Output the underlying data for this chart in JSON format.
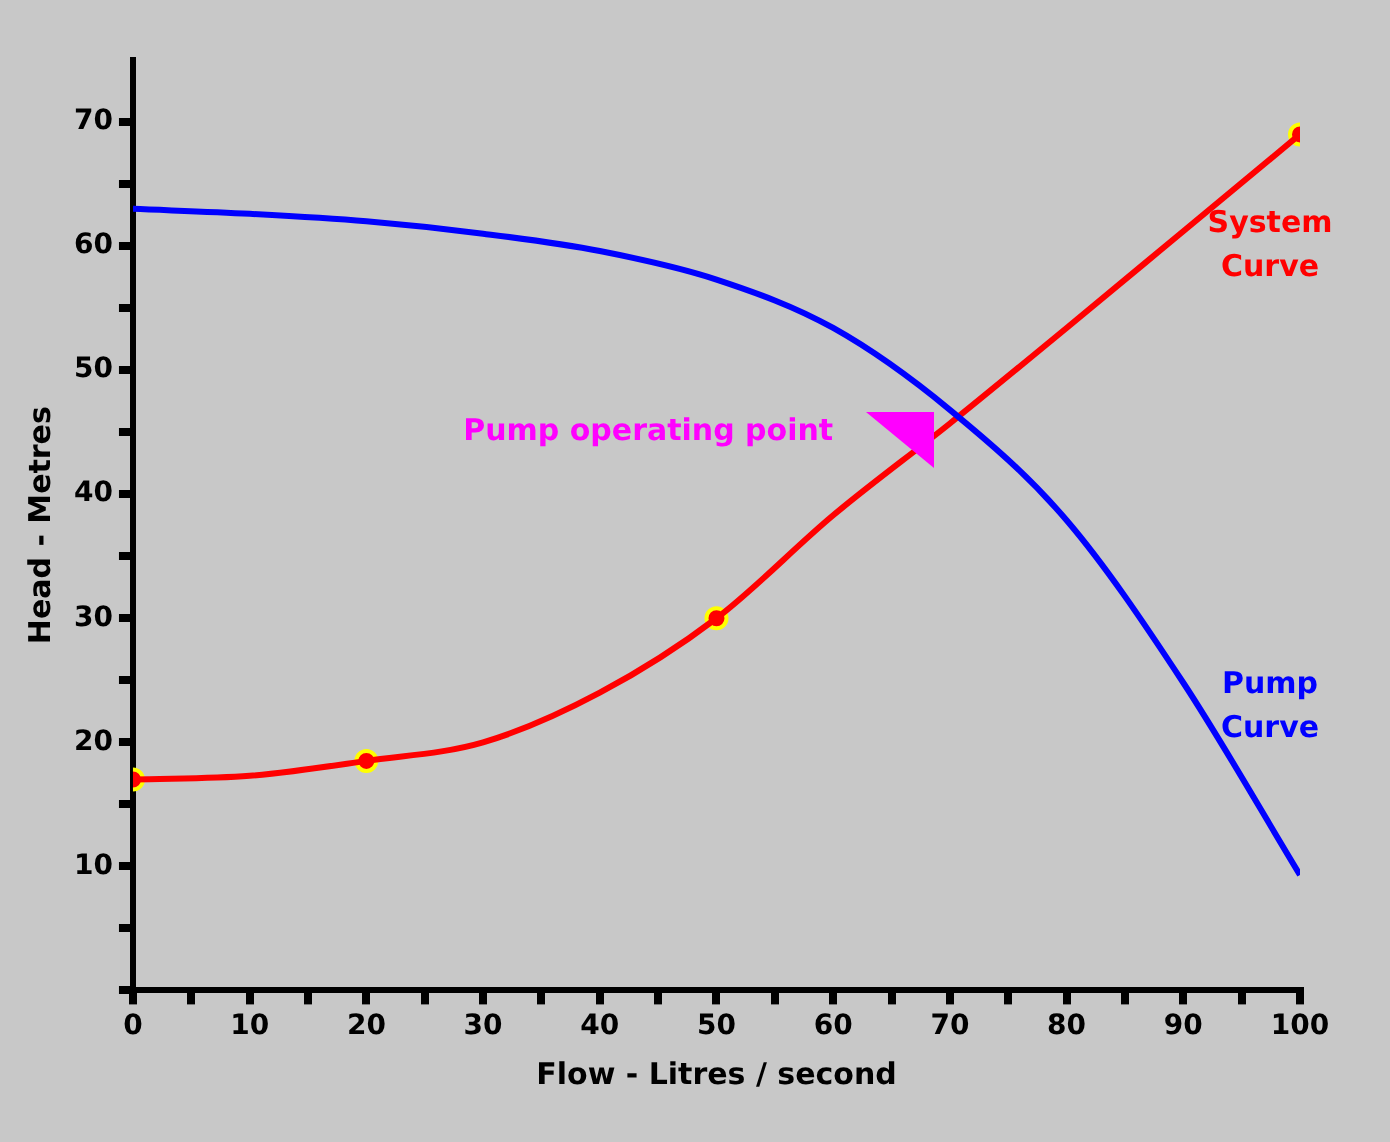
{
  "chart_data": {
    "type": "line",
    "xlabel": "Flow - Litres / second",
    "ylabel": "Head - Metres",
    "xlim": [
      0,
      100
    ],
    "ylim": [
      0,
      75
    ],
    "xticks": [
      0,
      {
        "value": 5,
        "label": null
      },
      10,
      {
        "value": 15,
        "label": null
      },
      20,
      {
        "value": 25,
        "label": null
      },
      30,
      {
        "value": 35,
        "label": null
      },
      40,
      {
        "value": 45,
        "label": null
      },
      50,
      {
        "value": 55,
        "label": null
      },
      60,
      {
        "value": 65,
        "label": null
      },
      70,
      {
        "value": 75,
        "label": null
      },
      80,
      {
        "value": 85,
        "label": null
      },
      90,
      {
        "value": 95,
        "label": null
      },
      100
    ],
    "yticks": [
      {
        "value": 0,
        "label": null
      },
      {
        "value": 5,
        "label": null
      },
      10,
      {
        "value": 15,
        "label": null
      },
      20,
      {
        "value": 25,
        "label": null
      },
      30,
      {
        "value": 35,
        "label": null
      },
      40,
      {
        "value": 45,
        "label": null
      },
      50,
      {
        "value": 55,
        "label": null
      },
      60,
      {
        "value": 65,
        "label": null
      },
      70
    ],
    "grid": false,
    "legend": false,
    "marker": "none",
    "line_style": "solid",
    "series": [
      {
        "name": "Pump Curve",
        "color": "#0000ff",
        "x": [
          0,
          10,
          20,
          30,
          40,
          50,
          60,
          70,
          80,
          90,
          100
        ],
        "values": [
          63,
          62.6,
          62,
          61,
          59.6,
          57.3,
          53.4,
          46.8,
          37.9,
          24.8,
          9.3
        ]
      },
      {
        "name": "System Curve",
        "color": "#ff0000",
        "x": [
          0,
          10,
          20,
          30,
          40,
          50,
          60,
          70,
          80,
          90,
          100
        ],
        "values": [
          17,
          17.3,
          18.5,
          20,
          24,
          30,
          38.3,
          45.7,
          53.4,
          61.2,
          69
        ]
      },
      {
        "type": "scatter",
        "color": "#ff0000",
        "marker": "circle",
        "x": [
          0,
          20,
          50,
          100
        ],
        "values": [
          17,
          18.5,
          30,
          69
        ]
      }
    ],
    "annotations": [
      "Pump operating point"
    ]
  }
}
